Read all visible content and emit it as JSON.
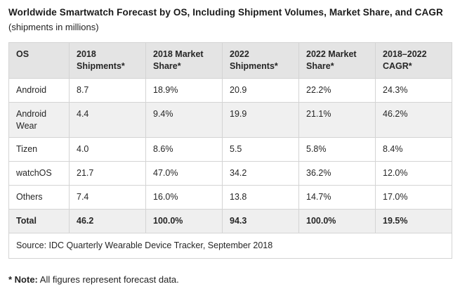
{
  "header": {
    "title": "Worldwide Smartwatch Forecast by OS, Including Shipment Volumes, Market Share, and CAGR",
    "subtitle": "(shipments in millions)"
  },
  "chart_data": {
    "type": "table",
    "columns": [
      "OS",
      "2018 Shipments*",
      "2018 Market Share*",
      "2022 Shipments*",
      "2022 Market Share*",
      "2018–2022 CAGR*"
    ],
    "rows": [
      [
        "Android",
        "8.7",
        "18.9%",
        "20.9",
        "22.2%",
        "24.3%"
      ],
      [
        "Android Wear",
        "4.4",
        "9.4%",
        "19.9",
        "21.1%",
        "46.2%"
      ],
      [
        "Tizen",
        "4.0",
        "8.6%",
        "5.5",
        "5.8%",
        "8.4%"
      ],
      [
        "watchOS",
        "21.7",
        "47.0%",
        "34.2",
        "36.2%",
        "12.0%"
      ],
      [
        "Others",
        "7.4",
        "16.0%",
        "13.8",
        "14.7%",
        "17.0%"
      ]
    ],
    "total_row": [
      "Total",
      "46.2",
      "100.0%",
      "94.3",
      "100.0%",
      "19.5%"
    ],
    "source": "Source: IDC Quarterly Wearable Device Tracker, September 2018",
    "layout": {
      "header_background": "#e4e4e4",
      "striped_row_background": "#f0f0f0",
      "border_color": "#d4d4d4",
      "striped_rows": [
        1
      ]
    }
  },
  "note": {
    "label": "* Note:",
    "text": " All figures represent forecast data."
  }
}
